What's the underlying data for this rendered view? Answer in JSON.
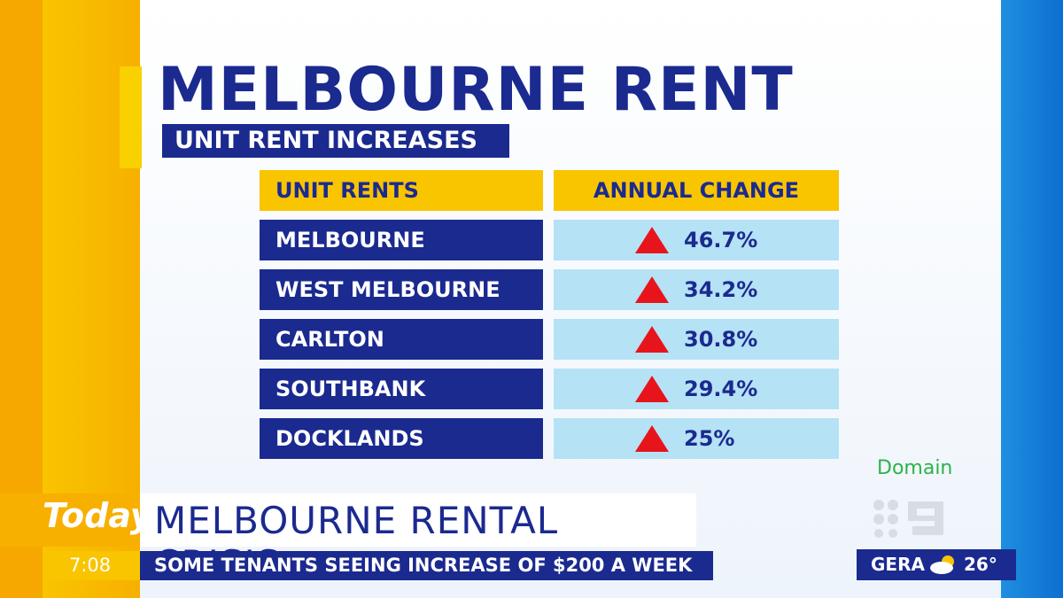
{
  "header": {
    "title": "MELBOURNE RENT",
    "subtitle": "UNIT RENT INCREASES"
  },
  "table": {
    "columns": [
      "UNIT RENTS",
      "ANNUAL CHANGE"
    ],
    "rows": [
      [
        "MELBOURNE",
        "46.7%"
      ],
      [
        "WEST MELBOURNE",
        "34.2%"
      ],
      [
        "CARLTON",
        "30.8%"
      ],
      [
        "SOUTHBANK",
        "29.4%"
      ],
      [
        "DOCKLANDS",
        "25%"
      ]
    ]
  },
  "source": "Domain",
  "ticker": {
    "logo": "Today",
    "headline": "MELBOURNE RENTAL CRISIS",
    "subline": "SOME TENANTS SEEING INCREASE OF $200 A WEEK",
    "time": "7:08",
    "weather_place": "GERA",
    "temperature": "26°"
  }
}
